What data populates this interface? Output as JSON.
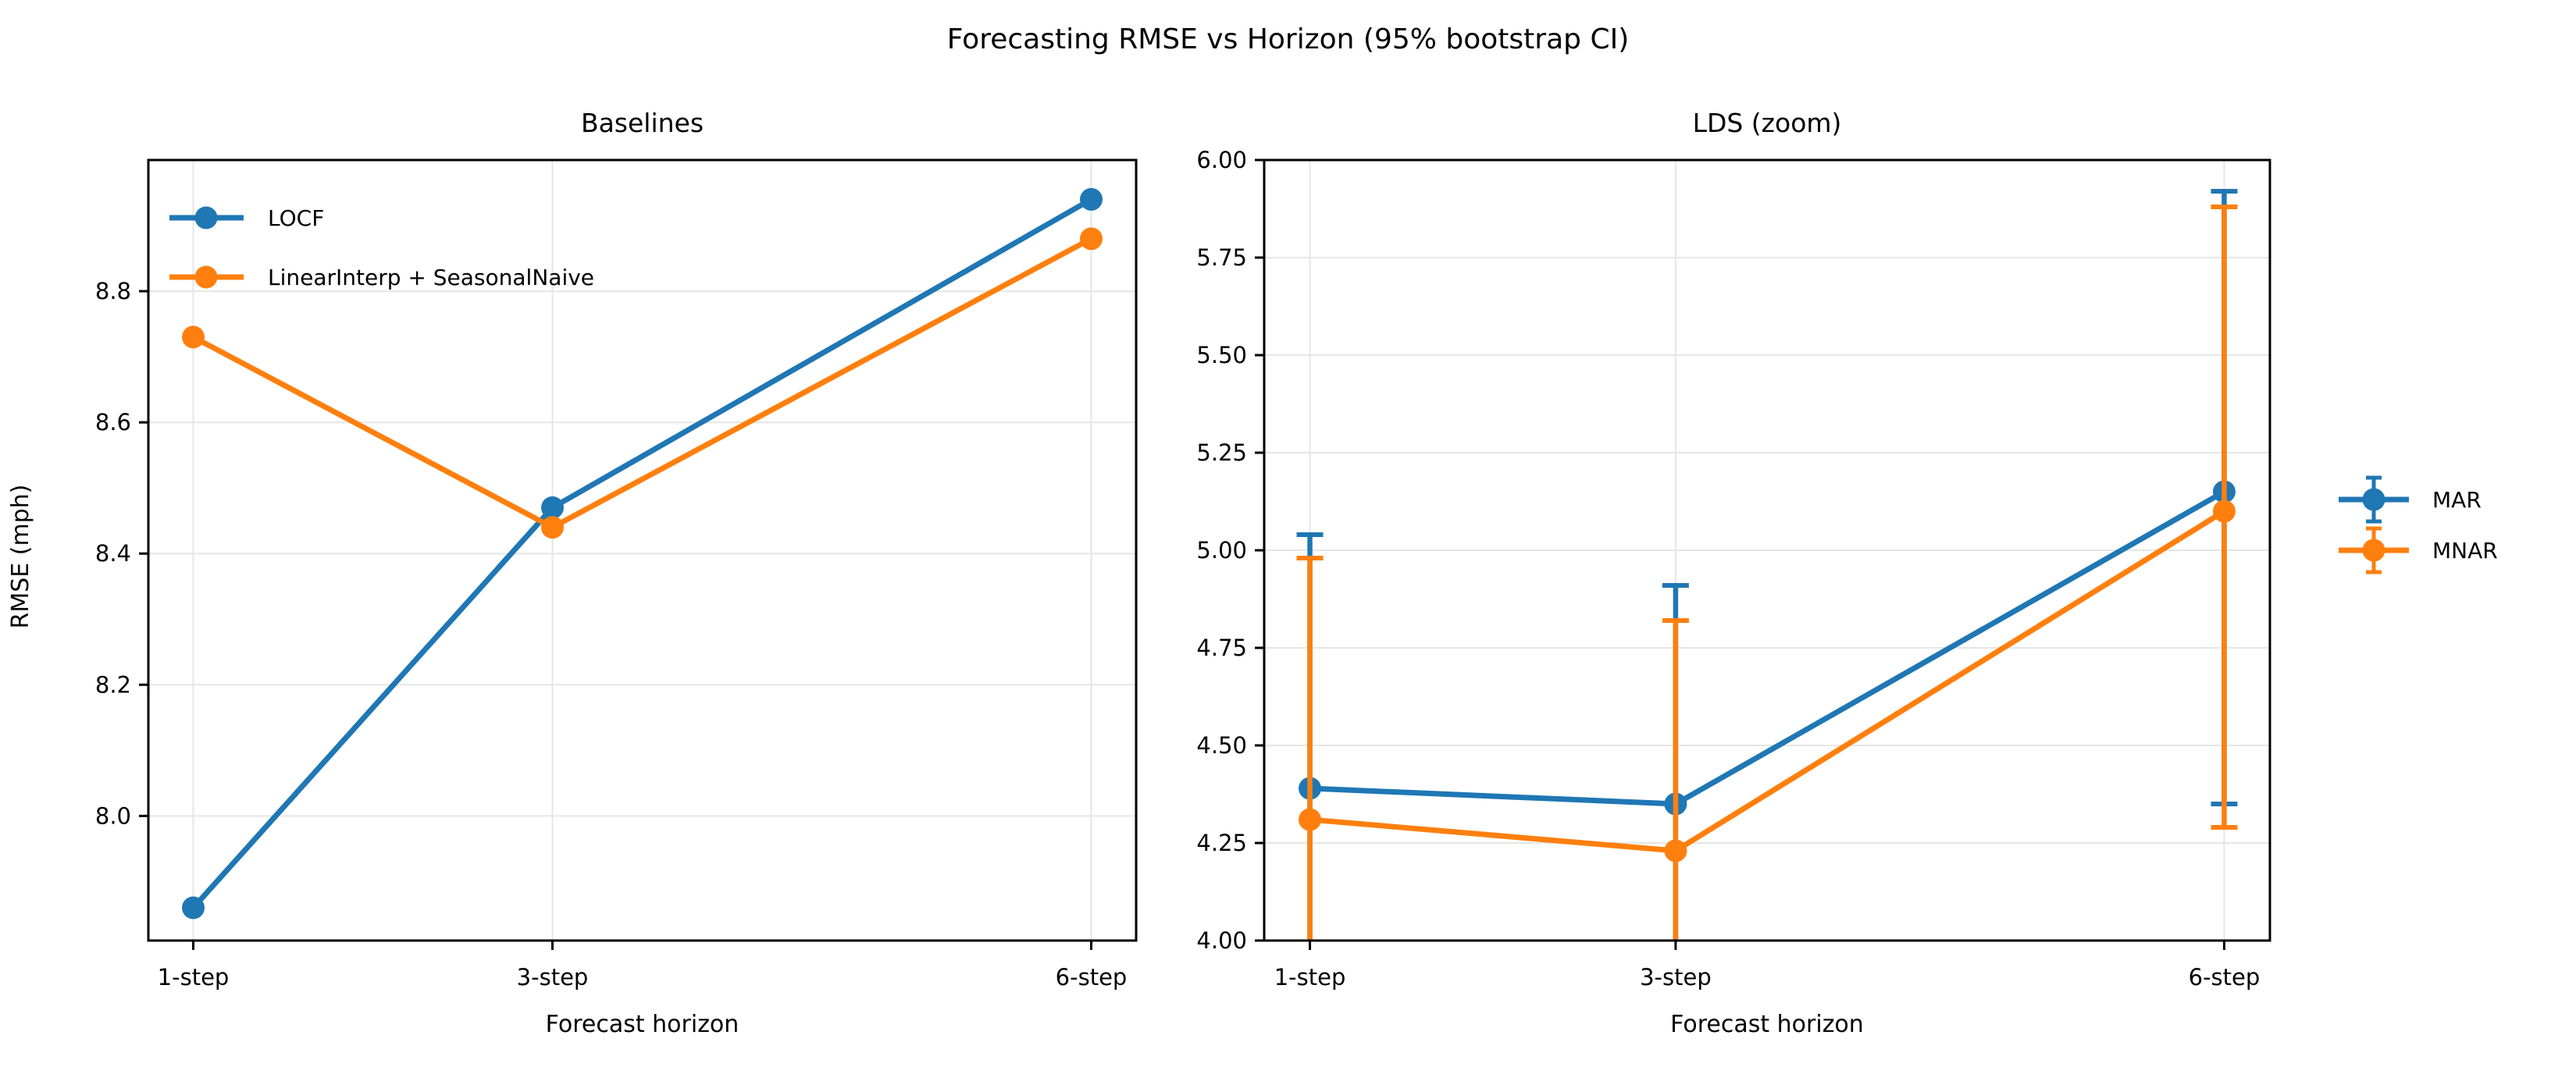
{
  "figure": {
    "title": "Forecasting RMSE vs Horizon (95% bootstrap CI)",
    "background_color": "#ffffff",
    "text_color": "#000000",
    "grid_color": "#e6e6e6",
    "spine_color": "#000000"
  },
  "chart_data": [
    {
      "type": "line",
      "title": "Baselines",
      "xlabel": "Forecast horizon",
      "ylabel": "RMSE (mph)",
      "x": [
        1,
        3,
        6
      ],
      "xtick_labels": [
        "1-step",
        "3-step",
        "6-step"
      ],
      "xlim": [
        0.75,
        6.25
      ],
      "ylim": [
        7.81,
        9.0
      ],
      "ytick_values": [
        8.0,
        8.2,
        8.4,
        8.6,
        8.8
      ],
      "ytick_labels": [
        "8.0",
        "8.2",
        "8.4",
        "8.6",
        "8.8"
      ],
      "grid": true,
      "legend_position": "upper-left-inside",
      "series": [
        {
          "name": "LOCF",
          "color": "#1f77b4",
          "values": [
            7.86,
            8.47,
            8.94
          ]
        },
        {
          "name": "LinearInterp + SeasonalNaive",
          "color": "#ff7f0e",
          "values": [
            8.73,
            8.44,
            8.88
          ]
        }
      ]
    },
    {
      "type": "line-errorbar",
      "title": "LDS (zoom)",
      "xlabel": "Forecast horizon",
      "ylabel": "",
      "x": [
        1,
        3,
        6
      ],
      "xtick_labels": [
        "1-step",
        "3-step",
        "6-step"
      ],
      "xlim": [
        0.75,
        6.25
      ],
      "ylim": [
        4.0,
        6.0
      ],
      "ytick_values": [
        4.0,
        4.25,
        4.5,
        4.75,
        5.0,
        5.25,
        5.5,
        5.75,
        6.0
      ],
      "ytick_labels": [
        "4.00",
        "4.25",
        "4.50",
        "4.75",
        "5.00",
        "5.25",
        "5.50",
        "5.75",
        "6.00"
      ],
      "grid": true,
      "legend_position": "outside-right",
      "series": [
        {
          "name": "MAR",
          "color": "#1f77b4",
          "values": [
            4.39,
            4.35,
            5.15
          ],
          "ci_high": [
            5.04,
            4.91,
            5.92
          ],
          "ci_low": [
            null,
            null,
            4.35
          ]
        },
        {
          "name": "MNAR",
          "color": "#ff7f0e",
          "values": [
            4.31,
            4.23,
            5.1
          ],
          "ci_high": [
            4.98,
            4.82,
            5.88
          ],
          "ci_low": [
            null,
            null,
            4.29
          ]
        }
      ]
    }
  ]
}
